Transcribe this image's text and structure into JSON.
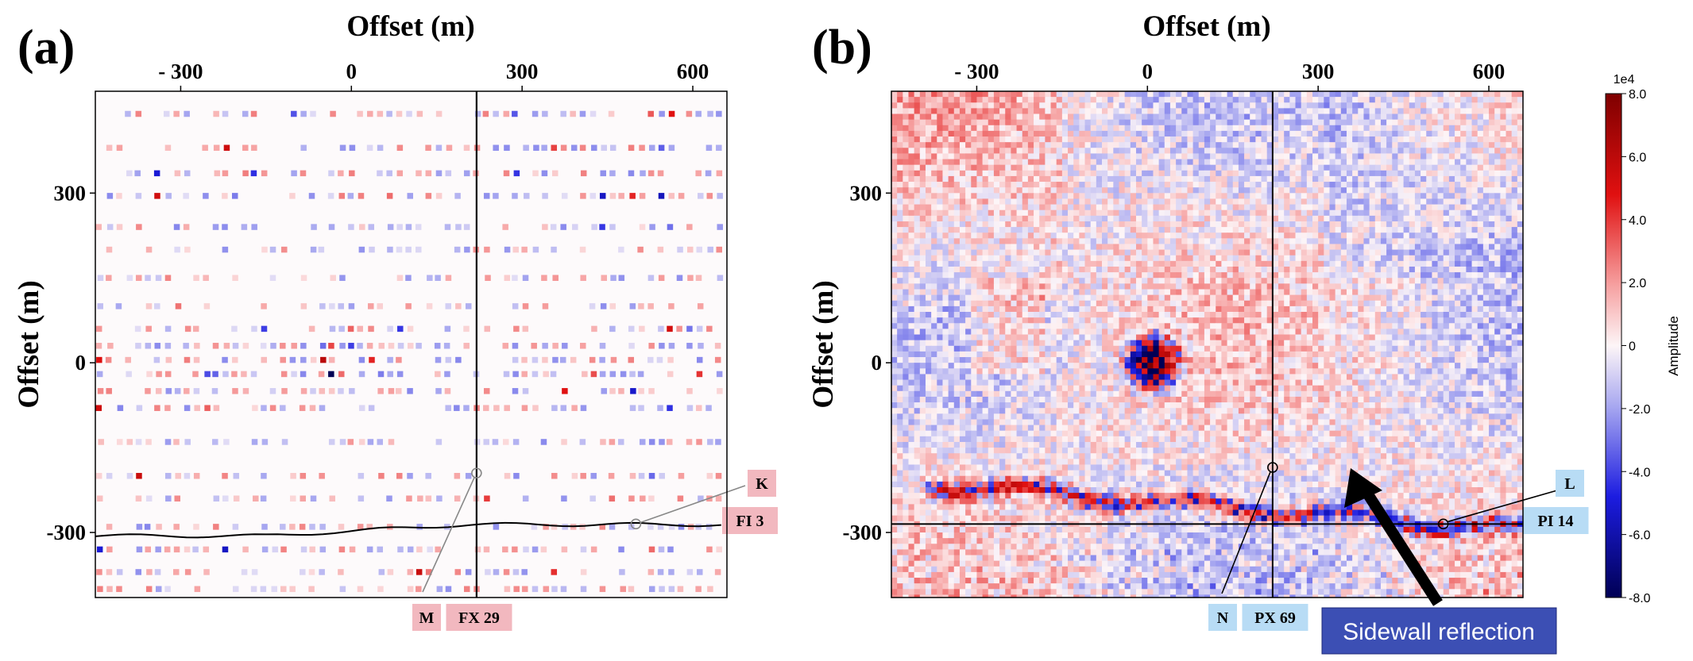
{
  "chart_data": [
    {
      "type": "heatmap",
      "panel_label": "(a)",
      "title": "Offset (m)",
      "xlabel": "Offset (m)",
      "ylabel": "Offset (m)",
      "xlim": [
        -450,
        660
      ],
      "ylim": [
        -415,
        480
      ],
      "xticks": [
        {
          "value": -300,
          "label": "- 300"
        },
        {
          "value": 0,
          "label": "0"
        },
        {
          "value": 300,
          "label": "300"
        },
        {
          "value": 600,
          "label": "600"
        }
      ],
      "yticks": [
        {
          "value": 300,
          "label": "300"
        },
        {
          "value": 0,
          "label": "0"
        },
        {
          "value": -300,
          "label": "-300"
        }
      ],
      "sparse_receiver_lines_y": [
        440,
        380,
        335,
        295,
        240,
        200,
        150,
        100,
        60,
        30,
        5,
        -20,
        -50,
        -80,
        -140,
        -200,
        -240,
        -290,
        -330,
        -370,
        -400
      ],
      "cross_line_x": 220,
      "markers": [
        {
          "name": "M",
          "x": 220,
          "y": -195,
          "tag": "M",
          "source": "FX 29"
        },
        {
          "name": "K",
          "x": 500,
          "y": -285,
          "tag": "K",
          "source": "FI 3"
        }
      ]
    },
    {
      "type": "heatmap",
      "panel_label": "(b)",
      "title": "Offset (m)",
      "xlabel": "Offset (m)",
      "ylabel": "Offset (m)",
      "xlim": [
        -450,
        660
      ],
      "ylim": [
        -415,
        480
      ],
      "xticks": [
        {
          "value": -300,
          "label": "- 300"
        },
        {
          "value": 0,
          "label": "0"
        },
        {
          "value": 300,
          "label": "300"
        },
        {
          "value": 600,
          "label": "600"
        }
      ],
      "yticks": [
        {
          "value": 300,
          "label": "300"
        },
        {
          "value": 0,
          "label": "0"
        },
        {
          "value": -300,
          "label": "-300"
        }
      ],
      "cross_line_x": 220,
      "cross_line_y": -285,
      "features": [
        {
          "name": "central_source",
          "x": 5,
          "y": 5,
          "amplitude": -8.0
        },
        {
          "name": "sidewall_reflection",
          "from": [
            -380,
            -210
          ],
          "to": [
            630,
            -290
          ],
          "amplitude": -7.0
        }
      ],
      "markers": [
        {
          "name": "N",
          "x": 220,
          "y": -185,
          "tag": "N",
          "source": "PX 69"
        },
        {
          "name": "L",
          "x": 520,
          "y": -285,
          "tag": "L",
          "source": "PI 14"
        }
      ],
      "annotation": "Sidewall reflection"
    }
  ],
  "colorbar": {
    "label": "Amplitude",
    "exponent": "1e4",
    "min": -8.0,
    "max": 8.0,
    "ticks": [
      "8.0",
      "6.0",
      "4.0",
      "2.0",
      "0",
      "-2.0",
      "-4.0",
      "-6.0",
      "-8.0"
    ],
    "colormap": "seismic"
  },
  "colors": {
    "tag_pink": "#f2b8bf",
    "tag_blue": "#b8dcf5",
    "annotation_bg": "#3c4fb4",
    "annotation_text": "#ffffff"
  }
}
